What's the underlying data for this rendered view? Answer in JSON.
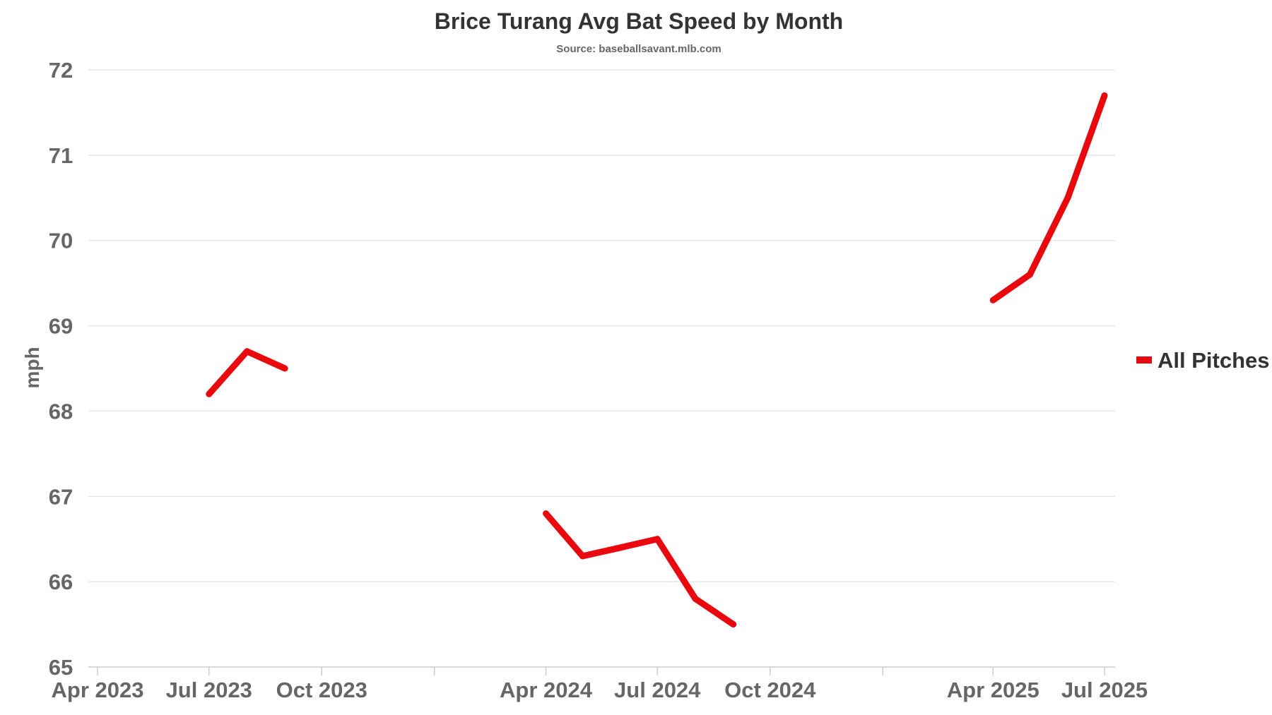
{
  "chart_data": {
    "type": "line",
    "title": "Brice Turang Avg Bat Speed by Month",
    "subtitle": "Source: baseballsavant.mlb.com",
    "ylabel": "mph",
    "xlabel": "",
    "ylim": [
      65,
      72
    ],
    "yticks": [
      65,
      66,
      67,
      68,
      69,
      70,
      71,
      72
    ],
    "grid": true,
    "legend_position": "right",
    "x_ticks": [
      {
        "label": "Apr 2023",
        "date": "2023-04-01",
        "labeled": true
      },
      {
        "label": "Jul 2023",
        "date": "2023-07-01",
        "labeled": true
      },
      {
        "label": "Oct 2023",
        "date": "2023-10-01",
        "labeled": true
      },
      {
        "label": "",
        "date": "2024-01-01",
        "labeled": false
      },
      {
        "label": "Apr 2024",
        "date": "2024-04-01",
        "labeled": true
      },
      {
        "label": "Jul 2024",
        "date": "2024-07-01",
        "labeled": true
      },
      {
        "label": "Oct 2024",
        "date": "2024-10-01",
        "labeled": true
      },
      {
        "label": "",
        "date": "2025-01-01",
        "labeled": false
      },
      {
        "label": "Apr 2025",
        "date": "2025-04-01",
        "labeled": true
      },
      {
        "label": "Jul 2025",
        "date": "2025-07-01",
        "labeled": true
      }
    ],
    "series": [
      {
        "name": "All Pitches",
        "color": "#e8080e",
        "segments": [
          [
            {
              "x": "2023-07-01",
              "y": 68.2
            },
            {
              "x": "2023-08-01",
              "y": 68.7
            },
            {
              "x": "2023-09-01",
              "y": 68.5
            }
          ],
          [
            {
              "x": "2024-04-01",
              "y": 66.8
            },
            {
              "x": "2024-05-01",
              "y": 66.3
            },
            {
              "x": "2024-06-01",
              "y": 66.4
            },
            {
              "x": "2024-07-01",
              "y": 66.5
            },
            {
              "x": "2024-08-01",
              "y": 65.8
            },
            {
              "x": "2024-09-01",
              "y": 65.5
            }
          ],
          [
            {
              "x": "2025-04-01",
              "y": 69.3
            },
            {
              "x": "2025-05-01",
              "y": 69.6
            },
            {
              "x": "2025-06-01",
              "y": 70.5
            },
            {
              "x": "2025-07-01",
              "y": 71.7
            }
          ]
        ]
      }
    ]
  }
}
